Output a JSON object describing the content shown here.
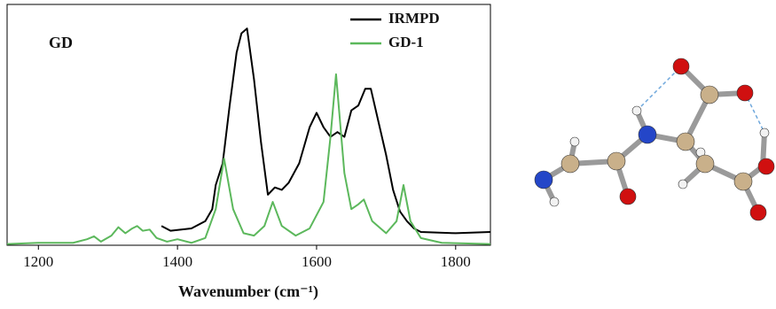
{
  "chart_data": {
    "type": "line",
    "annotation": "GD",
    "x_label": "Wavenumber (cm⁻¹)",
    "xlim": [
      1155,
      1850
    ],
    "xticks": [
      1200,
      1400,
      1600,
      1800
    ],
    "ylim": [
      0,
      1
    ],
    "legend": "top-right",
    "series": [
      {
        "name": "IRMPD",
        "color": "#000000",
        "x": [
          1377,
          1390,
          1420,
          1440,
          1450,
          1455,
          1465,
          1475,
          1485,
          1492,
          1500,
          1510,
          1520,
          1530,
          1540,
          1550,
          1560,
          1575,
          1590,
          1600,
          1610,
          1620,
          1630,
          1640,
          1650,
          1660,
          1670,
          1678,
          1690,
          1700,
          1710,
          1720,
          1730,
          1740,
          1750,
          1800,
          1850
        ],
        "values": [
          0.08,
          0.06,
          0.07,
          0.1,
          0.15,
          0.25,
          0.34,
          0.58,
          0.8,
          0.88,
          0.9,
          0.69,
          0.43,
          0.21,
          0.24,
          0.23,
          0.26,
          0.34,
          0.49,
          0.55,
          0.49,
          0.45,
          0.47,
          0.45,
          0.56,
          0.58,
          0.65,
          0.65,
          0.5,
          0.375,
          0.23,
          0.14,
          0.1,
          0.07,
          0.055,
          0.05,
          0.055
        ]
      },
      {
        "name": "GD-1",
        "color": "#5cb85c",
        "x": [
          1155,
          1200,
          1250,
          1270,
          1280,
          1290,
          1305,
          1315,
          1325,
          1335,
          1342,
          1350,
          1360,
          1370,
          1385,
          1400,
          1420,
          1440,
          1455,
          1467,
          1480,
          1495,
          1510,
          1525,
          1537,
          1550,
          1570,
          1590,
          1610,
          1620,
          1628,
          1640,
          1650,
          1660,
          1668,
          1680,
          1700,
          1715,
          1725,
          1735,
          1750,
          1780,
          1850
        ],
        "values": [
          0.005,
          0.01,
          0.01,
          0.025,
          0.037,
          0.015,
          0.04,
          0.075,
          0.05,
          0.07,
          0.08,
          0.06,
          0.065,
          0.03,
          0.015,
          0.025,
          0.01,
          0.03,
          0.15,
          0.36,
          0.15,
          0.05,
          0.04,
          0.08,
          0.18,
          0.08,
          0.04,
          0.07,
          0.18,
          0.45,
          0.71,
          0.3,
          0.15,
          0.17,
          0.19,
          0.1,
          0.05,
          0.1,
          0.25,
          0.1,
          0.03,
          0.01,
          0.005
        ]
      }
    ]
  }
}
